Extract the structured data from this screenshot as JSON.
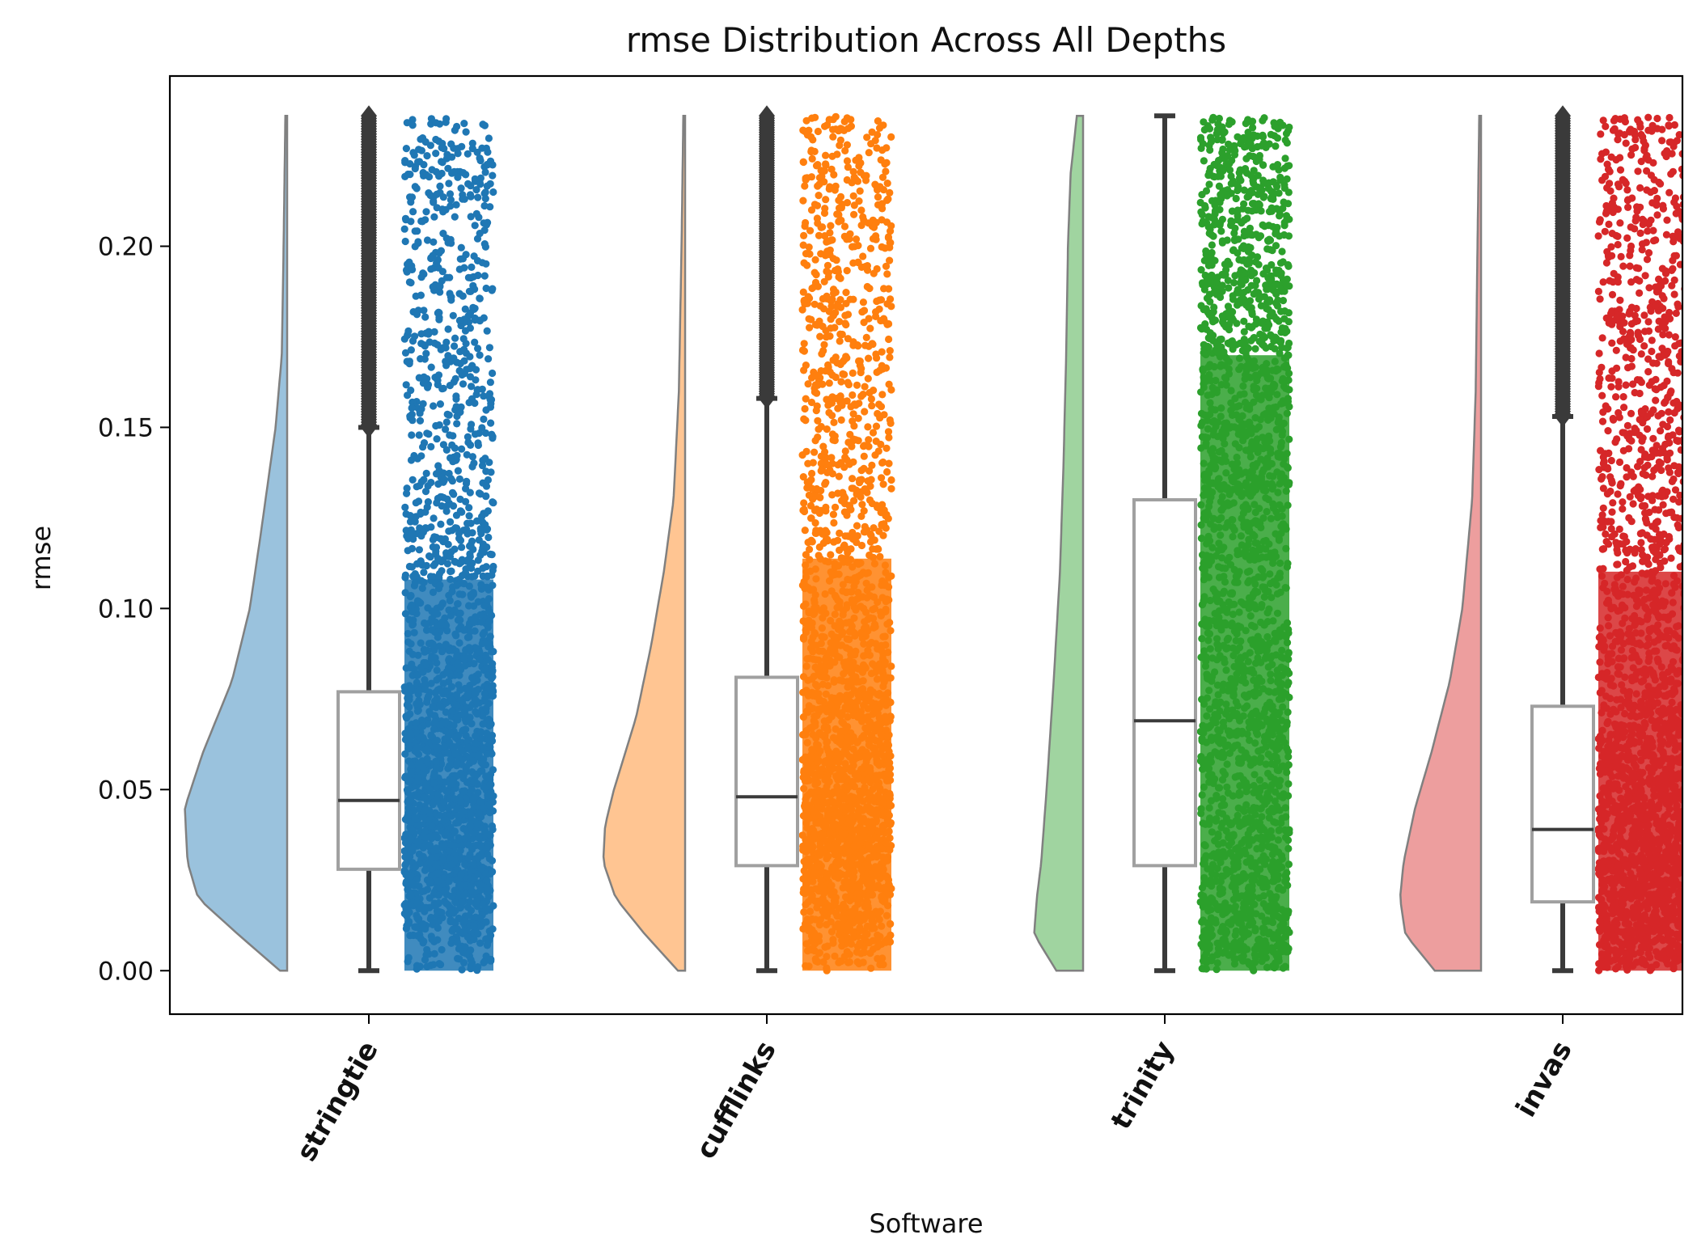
{
  "chart_data": {
    "type": "raincloud",
    "title": "rmse Distribution Across All Depths",
    "xlabel": "Software",
    "ylabel": "rmse",
    "ylim": [
      -0.012,
      0.247
    ],
    "yticks": [
      0.0,
      0.05,
      0.1,
      0.15,
      0.2
    ],
    "ytick_labels": [
      "0.00",
      "0.05",
      "0.10",
      "0.15",
      "0.20"
    ],
    "categories": [
      "stringtie",
      "cufflinks",
      "trinity",
      "invas"
    ],
    "series": [
      {
        "category": "stringtie",
        "color": "#1f77b4",
        "box": {
          "whisker_low": 0.0,
          "q1": 0.028,
          "median": 0.047,
          "q3": 0.077,
          "whisker_high": 0.15
        },
        "outliers_range": [
          0.15,
          0.236
        ],
        "density": [
          [
            0.0,
            0.08
          ],
          [
            0.01,
            0.55
          ],
          [
            0.02,
            1.0
          ],
          [
            0.03,
            1.12
          ],
          [
            0.045,
            1.15
          ],
          [
            0.06,
            0.95
          ],
          [
            0.08,
            0.62
          ],
          [
            0.1,
            0.42
          ],
          [
            0.12,
            0.3
          ],
          [
            0.15,
            0.13
          ],
          [
            0.17,
            0.06
          ],
          [
            0.2,
            0.04
          ],
          [
            0.236,
            0.02
          ]
        ]
      },
      {
        "category": "cufflinks",
        "color": "#ff7f0e",
        "box": {
          "whisker_low": 0.0,
          "q1": 0.029,
          "median": 0.048,
          "q3": 0.081,
          "whisker_high": 0.158
        },
        "outliers_range": [
          0.158,
          0.236
        ],
        "density": [
          [
            0.0,
            0.08
          ],
          [
            0.01,
            0.45
          ],
          [
            0.02,
            0.78
          ],
          [
            0.03,
            0.92
          ],
          [
            0.04,
            0.9
          ],
          [
            0.05,
            0.8
          ],
          [
            0.07,
            0.55
          ],
          [
            0.09,
            0.38
          ],
          [
            0.11,
            0.24
          ],
          [
            0.13,
            0.13
          ],
          [
            0.16,
            0.07
          ],
          [
            0.2,
            0.04
          ],
          [
            0.236,
            0.02
          ]
        ]
      },
      {
        "category": "trinity",
        "color": "#2ca02c",
        "box": {
          "whisker_low": 0.0,
          "q1": 0.029,
          "median": 0.069,
          "q3": 0.13,
          "whisker_high": 0.236
        },
        "outliers_range": [],
        "density": [
          [
            0.0,
            0.3
          ],
          [
            0.01,
            0.55
          ],
          [
            0.02,
            0.52
          ],
          [
            0.03,
            0.47
          ],
          [
            0.05,
            0.41
          ],
          [
            0.08,
            0.33
          ],
          [
            0.11,
            0.26
          ],
          [
            0.14,
            0.22
          ],
          [
            0.17,
            0.19
          ],
          [
            0.2,
            0.17
          ],
          [
            0.22,
            0.14
          ],
          [
            0.236,
            0.07
          ]
        ]
      },
      {
        "category": "invas",
        "color": "#d62728",
        "box": {
          "whisker_low": 0.0,
          "q1": 0.019,
          "median": 0.039,
          "q3": 0.073,
          "whisker_high": 0.153
        },
        "outliers_range": [
          0.153,
          0.236
        ],
        "density": [
          [
            0.0,
            0.52
          ],
          [
            0.01,
            0.85
          ],
          [
            0.02,
            0.91
          ],
          [
            0.03,
            0.87
          ],
          [
            0.045,
            0.74
          ],
          [
            0.06,
            0.56
          ],
          [
            0.08,
            0.35
          ],
          [
            0.1,
            0.21
          ],
          [
            0.13,
            0.1
          ],
          [
            0.16,
            0.06
          ],
          [
            0.2,
            0.04
          ],
          [
            0.236,
            0.02
          ]
        ]
      }
    ],
    "grid": false,
    "legend": "none"
  }
}
